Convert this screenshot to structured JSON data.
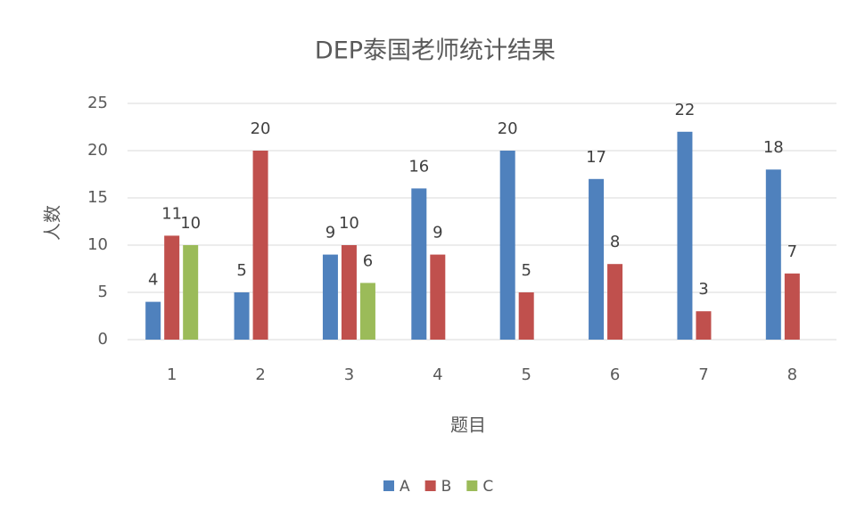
{
  "chart_data": {
    "type": "bar",
    "title": "DEP泰国老师统计结果",
    "x_label": "题目",
    "y_label": "人数",
    "categories": [
      "1",
      "2",
      "3",
      "4",
      "5",
      "6",
      "7",
      "8"
    ],
    "series": [
      {
        "name": "A",
        "color": "#4f81bd",
        "values": [
          4,
          5,
          9,
          16,
          20,
          17,
          22,
          18
        ]
      },
      {
        "name": "B",
        "color": "#c0504d",
        "values": [
          11,
          20,
          10,
          9,
          5,
          8,
          3,
          7
        ]
      },
      {
        "name": "C",
        "color": "#9bbb59",
        "values": [
          10,
          null,
          6,
          null,
          null,
          null,
          null,
          null
        ]
      }
    ],
    "ylim": [
      0,
      25
    ],
    "yticks": [
      0,
      5,
      10,
      15,
      20,
      25
    ],
    "grid": true,
    "legend": "bottom"
  }
}
